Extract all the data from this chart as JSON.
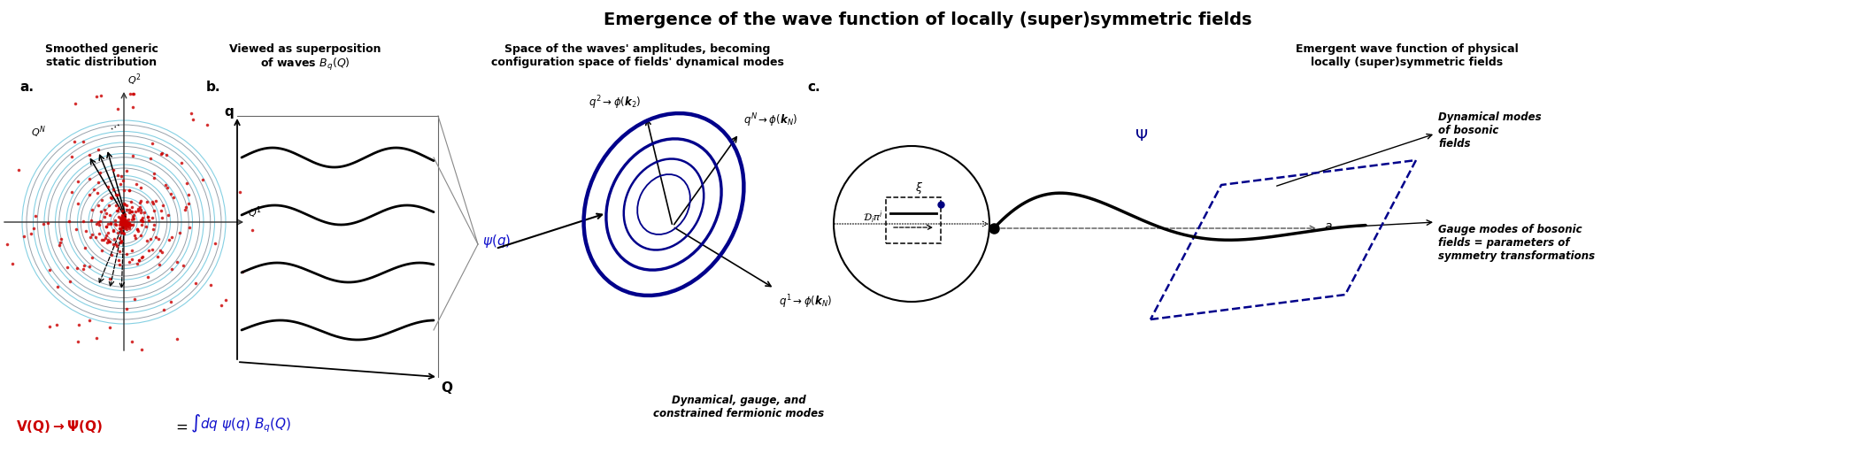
{
  "title": "Emergence of the wave function of locally (super)symmetric fields",
  "title_fontsize": 14,
  "bg_color": "#ffffff",
  "fig_width": 20.96,
  "fig_height": 5.21,
  "red_color": "#cc0000",
  "blue_color": "#1111cc",
  "dark_blue": "#00008B",
  "cyan_color": "#00aaaa",
  "black": "#000000",
  "panel_a_title": "Smoothed generic\nstatic distribution",
  "panel_b_title": "Viewed as superposition\nof waves $B_q(Q)$",
  "panel_c_title": "Space of the waves' amplitudes, becoming\nconfiguration space of fields' dynamical modes",
  "panel_d_title": "Emergent wave function of physical\nlocally (super)symmetric fields"
}
